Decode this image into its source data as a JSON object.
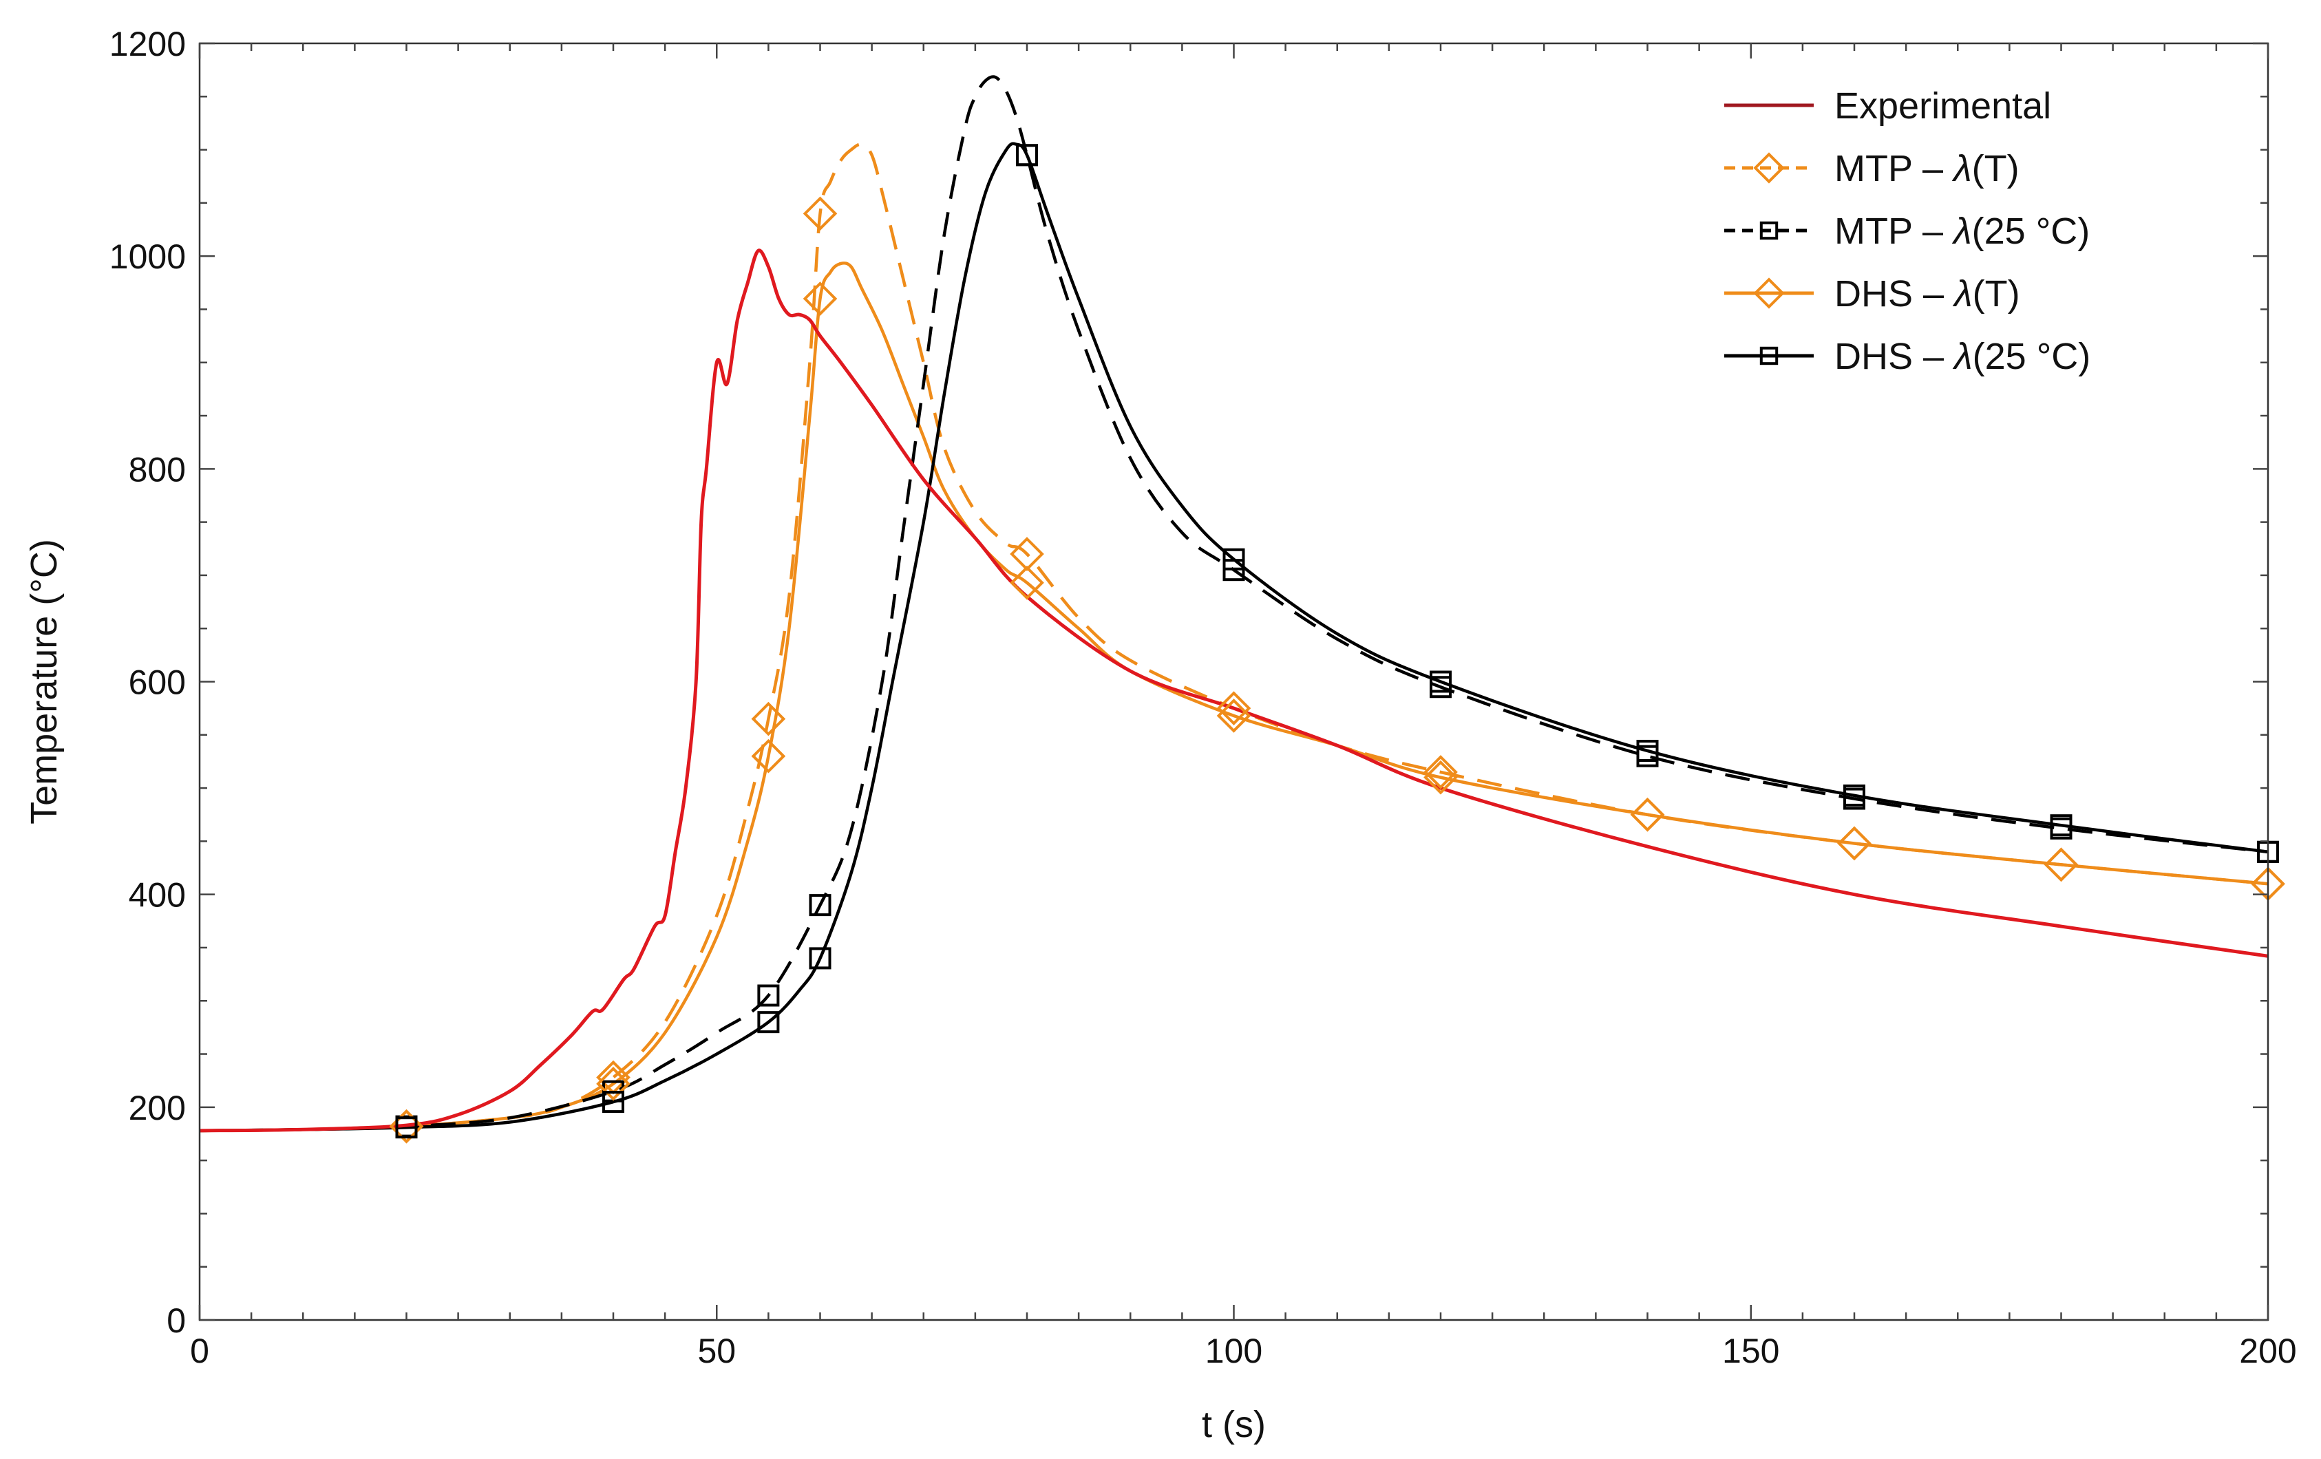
{
  "chart_data": {
    "type": "line",
    "title": "",
    "xlabel": "t (s)",
    "ylabel": "Temperature (°C)",
    "xlim": [
      0,
      200
    ],
    "ylim": [
      0,
      1200
    ],
    "xticks": [
      0,
      50,
      100,
      150,
      200
    ],
    "yticks": [
      0,
      200,
      400,
      600,
      800,
      1000,
      1200
    ],
    "x_tick_labels": [
      "0",
      "50",
      "100",
      "150",
      "200"
    ],
    "y_tick_labels": [
      "0",
      "200",
      "400",
      "600",
      "800",
      "1000",
      "1200"
    ],
    "grid": false,
    "legend_position": "top-right",
    "series": [
      {
        "name": "Experimental",
        "label_parts": [
          "Experimental"
        ],
        "color": "#e0191f",
        "legend_color": "#a01820",
        "dash": "solid",
        "marker": "none",
        "x": [
          0,
          10,
          20,
          25,
          30,
          33,
          36,
          38,
          39,
          41,
          42,
          44,
          45,
          46,
          47,
          48,
          48.5,
          49,
          50,
          51,
          52,
          53,
          54,
          55,
          56,
          57,
          58,
          59,
          60,
          62,
          65,
          70,
          75,
          80,
          90,
          100,
          110,
          120,
          140,
          160,
          180,
          200
        ],
        "y": [
          178,
          179,
          183,
          193,
          215,
          240,
          268,
          290,
          292,
          320,
          330,
          370,
          380,
          440,
          500,
          600,
          750,
          800,
          900,
          880,
          940,
          975,
          1005,
          990,
          960,
          945,
          945,
          940,
          925,
          900,
          860,
          790,
          735,
          680,
          610,
          575,
          540,
          500,
          445,
          400,
          370,
          342
        ]
      },
      {
        "name": "MTP – λ(T)",
        "label_parts": [
          "MTP – ",
          "λ",
          "(T)"
        ],
        "color": "#ef8c1a",
        "dash": "dashed",
        "marker": "diamond",
        "x": [
          0,
          10,
          20,
          30,
          35,
          40,
          45,
          50,
          53,
          55,
          57,
          59,
          60,
          61,
          62,
          63,
          64,
          65,
          66,
          68,
          70,
          72,
          75,
          78,
          80,
          85,
          90,
          100,
          110,
          120,
          140,
          160,
          180,
          200
        ],
        "y": [
          178,
          179,
          182,
          190,
          200,
          228,
          280,
          380,
          480,
          565,
          680,
          900,
          1040,
          1070,
          1090,
          1100,
          1105,
          1095,
          1060,
          980,
          900,
          820,
          760,
          730,
          720,
          660,
          620,
          575,
          540,
          515,
          475,
          448,
          428,
          410
        ],
        "marker_x": [
          20,
          40,
          55,
          60,
          80,
          100,
          120,
          140,
          160,
          180,
          200
        ],
        "marker_y": [
          182,
          228,
          565,
          1040,
          720,
          575,
          515,
          475,
          448,
          428,
          410
        ]
      },
      {
        "name": "MTP – λ(25 °C)",
        "label_parts": [
          "MTP – ",
          "λ",
          "(25 °C)"
        ],
        "color": "#000000",
        "dash": "dashed",
        "marker": "square",
        "x": [
          0,
          10,
          20,
          30,
          40,
          45,
          50,
          55,
          60,
          63,
          66,
          68,
          70,
          72,
          74,
          75,
          76,
          77,
          78,
          79,
          80,
          82,
          85,
          90,
          95,
          100,
          110,
          120,
          140,
          160,
          180,
          200
        ],
        "y": [
          178,
          179,
          182,
          190,
          215,
          240,
          270,
          305,
          390,
          460,
          600,
          740,
          880,
          1020,
          1120,
          1150,
          1165,
          1168,
          1155,
          1130,
          1095,
          1020,
          930,
          810,
          740,
          705,
          640,
          595,
          530,
          490,
          462,
          440
        ],
        "marker_x": [
          20,
          40,
          55,
          60,
          80,
          100,
          120,
          140,
          160,
          180,
          200
        ],
        "marker_y": [
          182,
          215,
          305,
          390,
          1095,
          705,
          595,
          530,
          490,
          462,
          440
        ]
      },
      {
        "name": "DHS – λ(T)",
        "label_parts": [
          "DHS – ",
          "λ",
          "(T)"
        ],
        "color": "#ef8c1a",
        "dash": "solid",
        "marker": "diamond",
        "x": [
          0,
          10,
          20,
          30,
          35,
          40,
          45,
          50,
          53,
          55,
          57,
          59,
          60,
          61,
          62,
          63,
          64,
          66,
          68,
          70,
          72,
          75,
          78,
          80,
          85,
          90,
          100,
          110,
          120,
          140,
          160,
          180,
          200
        ],
        "y": [
          178,
          179,
          182,
          190,
          200,
          222,
          270,
          360,
          450,
          530,
          650,
          850,
          960,
          985,
          993,
          990,
          970,
          930,
          880,
          830,
          780,
          735,
          705,
          693,
          650,
          610,
          568,
          540,
          510,
          475,
          448,
          428,
          410
        ],
        "marker_x": [
          20,
          40,
          55,
          60,
          80,
          100,
          120,
          140,
          160,
          180,
          200
        ],
        "marker_y": [
          182,
          222,
          530,
          960,
          693,
          568,
          510,
          475,
          448,
          428,
          410
        ]
      },
      {
        "name": "DHS – λ(25 °C)",
        "label_parts": [
          "DHS – ",
          "λ",
          "(25 °C)"
        ],
        "color": "#000000",
        "dash": "solid",
        "marker": "square",
        "x": [
          0,
          10,
          20,
          30,
          40,
          45,
          50,
          55,
          58,
          60,
          63,
          65,
          67,
          70,
          72,
          74,
          76,
          78,
          79,
          80,
          82,
          85,
          90,
          95,
          100,
          110,
          120,
          140,
          160,
          180,
          200
        ],
        "y": [
          178,
          179,
          181,
          186,
          205,
          225,
          250,
          280,
          310,
          340,
          420,
          500,
          600,
          750,
          870,
          980,
          1060,
          1100,
          1105,
          1095,
          1040,
          960,
          840,
          765,
          715,
          645,
          600,
          535,
          493,
          465,
          440
        ],
        "marker_x": [
          20,
          40,
          55,
          60,
          80,
          100,
          120,
          140,
          160,
          180,
          200
        ],
        "marker_y": [
          181,
          205,
          280,
          340,
          1095,
          715,
          600,
          535,
          493,
          465,
          440
        ]
      }
    ]
  }
}
